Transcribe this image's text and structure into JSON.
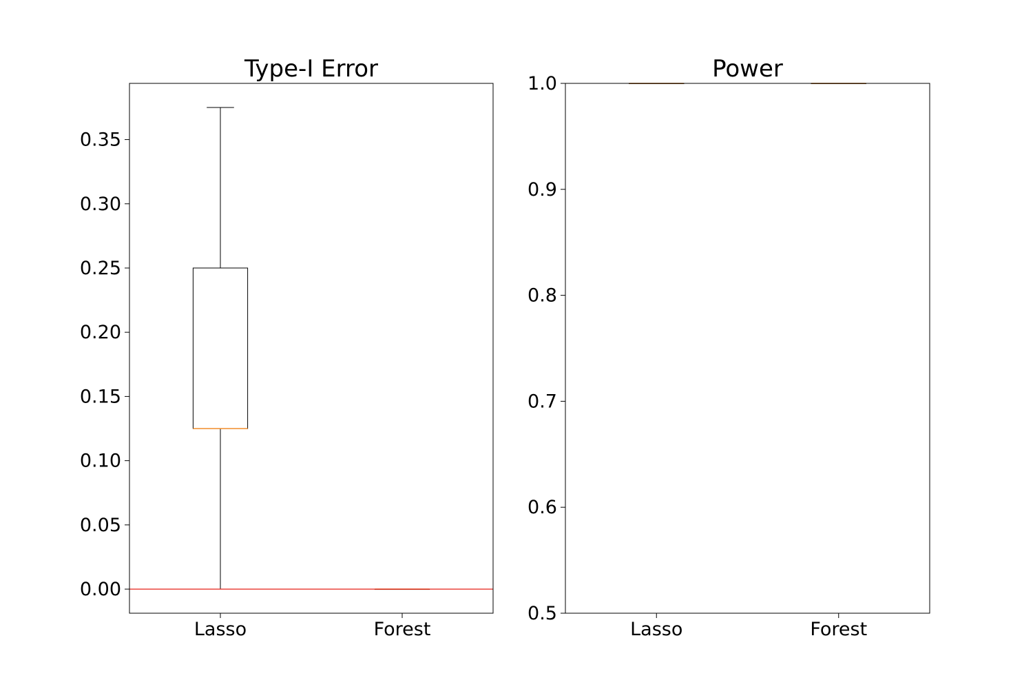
{
  "chart_data": [
    {
      "type": "box",
      "title": "Type-I Error",
      "xlabel": "",
      "ylabel": "",
      "categories": [
        "Lasso",
        "Forest"
      ],
      "boxes": [
        {
          "category": "Lasso",
          "whisker_low": 0.0,
          "q1": 0.125,
          "median": 0.125,
          "q3": 0.25,
          "whisker_high": 0.375
        },
        {
          "category": "Forest",
          "whisker_low": 0.0,
          "q1": 0.0,
          "median": 0.0,
          "q3": 0.0,
          "whisker_high": 0.0
        }
      ],
      "reference_line": {
        "y": 0.0,
        "color": "#e8332a"
      },
      "ylim": [
        -0.01875,
        0.39375
      ],
      "yticks": [
        "0.00",
        "0.05",
        "0.10",
        "0.15",
        "0.20",
        "0.25",
        "0.30",
        "0.35"
      ],
      "grid": false
    },
    {
      "type": "box",
      "title": "Power",
      "xlabel": "",
      "ylabel": "",
      "categories": [
        "Lasso",
        "Forest"
      ],
      "boxes": [
        {
          "category": "Lasso",
          "whisker_low": 1.0,
          "q1": 1.0,
          "median": 1.0,
          "q3": 1.0,
          "whisker_high": 1.0
        },
        {
          "category": "Forest",
          "whisker_low": 1.0,
          "q1": 1.0,
          "median": 1.0,
          "q3": 1.0,
          "whisker_high": 1.0
        }
      ],
      "ylim": [
        0.5,
        1.0
      ],
      "yticks": [
        "0.5",
        "0.6",
        "0.7",
        "0.8",
        "0.9",
        "1.0"
      ],
      "grid": false
    }
  ],
  "colors": {
    "box": "#000000",
    "median": "#f28e2b",
    "reference_line": "#e8332a"
  }
}
